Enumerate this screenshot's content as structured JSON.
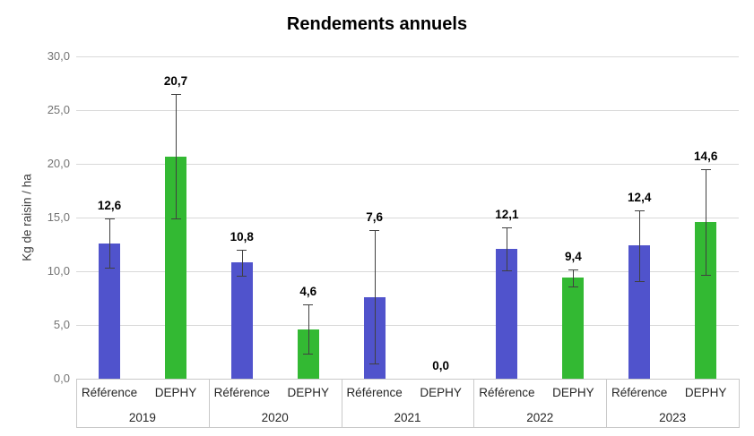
{
  "chart_data": {
    "type": "bar",
    "title": "Rendements annuels",
    "xlabel": "",
    "ylabel": "Kg de raisin / ha",
    "ylim": [
      0,
      30
    ],
    "ytick_step": 5,
    "ytick_labels": [
      "0,0",
      "5,0",
      "10,0",
      "15,0",
      "20,0",
      "25,0",
      "30,0"
    ],
    "grid": true,
    "legend": "none",
    "categories": [
      "2019",
      "2020",
      "2021",
      "2022",
      "2023"
    ],
    "sub_categories": [
      "Référence",
      "DEPHY"
    ],
    "series": [
      {
        "name": "Référence",
        "color": "#5053cc",
        "values": [
          12.6,
          10.8,
          7.6,
          12.1,
          12.4
        ],
        "labels": [
          "12,6",
          "10,8",
          "7,6",
          "12,1",
          "12,4"
        ],
        "errors": [
          2.3,
          1.2,
          6.2,
          2.0,
          3.3
        ]
      },
      {
        "name": "DEPHY",
        "color": "#33b933",
        "values": [
          20.7,
          4.6,
          0.0,
          9.4,
          14.6
        ],
        "labels": [
          "20,7",
          "4,6",
          "0,0",
          "9,4",
          "14,6"
        ],
        "errors": [
          5.8,
          2.3,
          0,
          0.8,
          4.9
        ]
      }
    ],
    "error_bar_color": "#404040",
    "gridline_color": "#d9d9d9",
    "axis_frame_color": "#c9c9c9",
    "tick_label_color": "#737373",
    "category_label_color": "#262626"
  }
}
